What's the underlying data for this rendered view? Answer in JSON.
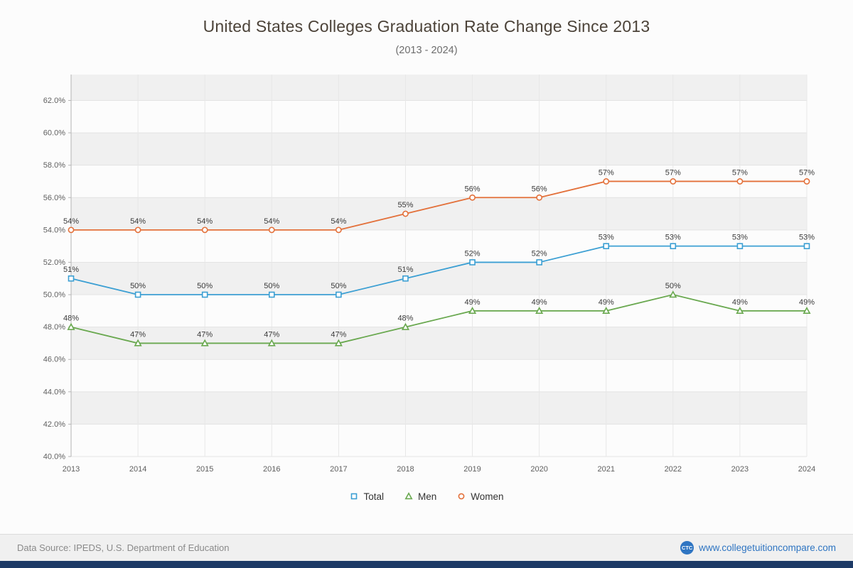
{
  "header": {
    "title": "United States Colleges Graduation Rate Change Since 2013",
    "subtitle": "(2013 - 2024)"
  },
  "chart_data": {
    "type": "line",
    "title": "United States Colleges Graduation Rate Change Since 2013",
    "subtitle": "(2013 - 2024)",
    "x": [
      2013,
      2014,
      2015,
      2016,
      2017,
      2018,
      2019,
      2020,
      2021,
      2022,
      2023,
      2024
    ],
    "series": [
      {
        "name": "Total",
        "color": "#3b9fd3",
        "marker": "square",
        "values": [
          51,
          50,
          50,
          50,
          50,
          51,
          52,
          52,
          53,
          53,
          53,
          53
        ]
      },
      {
        "name": "Men",
        "color": "#69a84f",
        "marker": "triangle",
        "values": [
          48,
          47,
          47,
          47,
          47,
          48,
          49,
          49,
          49,
          50,
          49,
          49
        ]
      },
      {
        "name": "Women",
        "color": "#e3703a",
        "marker": "circle",
        "values": [
          54,
          54,
          54,
          54,
          54,
          55,
          56,
          56,
          57,
          57,
          57,
          57
        ]
      }
    ],
    "xlabel": "",
    "ylabel": "",
    "ylim": [
      40,
      63.6
    ],
    "ytick_step": 2,
    "ytick_format": "percent_one_decimal",
    "data_label_format": "percent_integer",
    "grid": true,
    "band_color": "#f0f0f0",
    "grid_color": "#e3e3e3",
    "axis_color": "#b5b5b5",
    "legend_position": "bottom"
  },
  "footer": {
    "source": "Data Source: IPEDS, U.S. Department of Education",
    "logo_text": "CTC",
    "site": "www.collegetuitioncompare.com"
  }
}
